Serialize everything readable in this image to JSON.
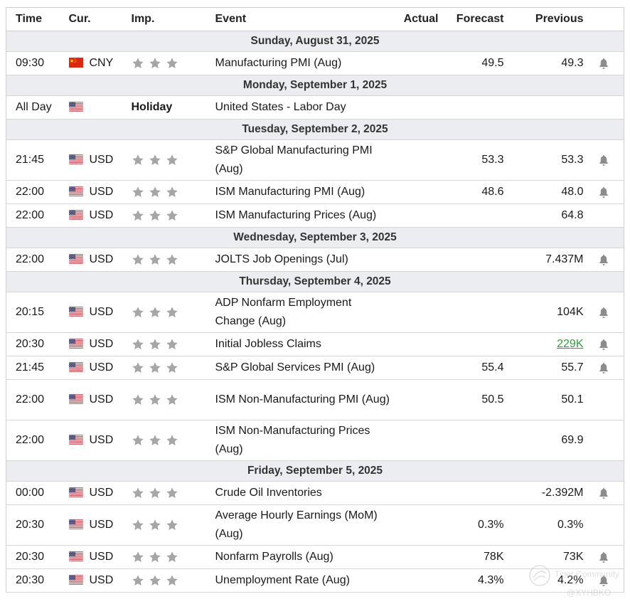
{
  "headers": {
    "time": "Time",
    "cur": "Cur.",
    "imp": "Imp.",
    "event": "Event",
    "actual": "Actual",
    "forecast": "Forecast",
    "previous": "Previous"
  },
  "days": [
    {
      "date": "Sunday, August 31, 2025",
      "events": [
        {
          "time": "09:30",
          "flag": "cn-flag-icon",
          "cur": "CNY",
          "stars": 3,
          "event": "Manufacturing PMI (Aug)",
          "actual": "",
          "forecast": "49.5",
          "previous": "49.3",
          "alert": true
        }
      ]
    },
    {
      "date": "Monday, September 1, 2025",
      "events": [
        {
          "time": "All Day",
          "flag": "us-flag-icon",
          "cur": "",
          "holiday": "Holiday",
          "event": "United States - Labor Day",
          "actual": "",
          "forecast": "",
          "previous": "",
          "alert": false
        }
      ]
    },
    {
      "date": "Tuesday, September 2, 2025",
      "events": [
        {
          "time": "21:45",
          "flag": "us-flag-icon",
          "cur": "USD",
          "stars": 3,
          "event": "S&P Global Manufacturing PMI (Aug)",
          "actual": "",
          "forecast": "53.3",
          "previous": "53.3",
          "alert": true,
          "tall": true
        },
        {
          "time": "22:00",
          "flag": "us-flag-icon",
          "cur": "USD",
          "stars": 3,
          "event": "ISM Manufacturing PMI (Aug)",
          "actual": "",
          "forecast": "48.6",
          "previous": "48.0",
          "alert": true
        },
        {
          "time": "22:00",
          "flag": "us-flag-icon",
          "cur": "USD",
          "stars": 3,
          "event": "ISM Manufacturing Prices (Aug)",
          "actual": "",
          "forecast": "",
          "previous": "64.8",
          "alert": false
        }
      ]
    },
    {
      "date": "Wednesday, September 3, 2025",
      "events": [
        {
          "time": "22:00",
          "flag": "us-flag-icon",
          "cur": "USD",
          "stars": 3,
          "event": "JOLTS Job Openings (Jul)",
          "actual": "",
          "forecast": "",
          "previous": "7.437M",
          "alert": true
        }
      ]
    },
    {
      "date": "Thursday, September 4, 2025",
      "events": [
        {
          "time": "20:15",
          "flag": "us-flag-icon",
          "cur": "USD",
          "stars": 3,
          "event": "ADP Nonfarm Employment Change (Aug)",
          "actual": "",
          "forecast": "",
          "previous": "104K",
          "alert": true,
          "tall": true
        },
        {
          "time": "20:30",
          "flag": "us-flag-icon",
          "cur": "USD",
          "stars": 3,
          "event": "Initial Jobless Claims",
          "actual": "",
          "forecast": "",
          "previous": "229K",
          "previous_color": "#2aa332",
          "alert": true
        },
        {
          "time": "21:45",
          "flag": "us-flag-icon",
          "cur": "USD",
          "stars": 3,
          "event": "S&P Global Services PMI (Aug)",
          "actual": "",
          "forecast": "55.4",
          "previous": "55.7",
          "alert": true
        },
        {
          "time": "22:00",
          "flag": "us-flag-icon",
          "cur": "USD",
          "stars": 3,
          "event": "ISM Non-Manufacturing PMI (Aug)",
          "actual": "",
          "forecast": "50.5",
          "previous": "50.1",
          "alert": false,
          "tall": true
        },
        {
          "time": "22:00",
          "flag": "us-flag-icon",
          "cur": "USD",
          "stars": 3,
          "event": "ISM Non-Manufacturing Prices (Aug)",
          "actual": "",
          "forecast": "",
          "previous": "69.9",
          "alert": false,
          "tall": true
        }
      ]
    },
    {
      "date": "Friday, September 5, 2025",
      "events": [
        {
          "time": "00:00",
          "flag": "us-flag-icon",
          "cur": "USD",
          "stars": 3,
          "event": "Crude Oil Inventories",
          "actual": "",
          "forecast": "",
          "previous": "-2.392M",
          "alert": true
        },
        {
          "time": "20:30",
          "flag": "us-flag-icon",
          "cur": "USD",
          "stars": 3,
          "event": "Average Hourly Earnings (MoM) (Aug)",
          "actual": "",
          "forecast": "0.3%",
          "previous": "0.3%",
          "alert": false,
          "tall": true
        },
        {
          "time": "20:30",
          "flag": "us-flag-icon",
          "cur": "USD",
          "stars": 3,
          "event": "Nonfarm Payrolls (Aug)",
          "actual": "",
          "forecast": "78K",
          "previous": "73K",
          "alert": true
        },
        {
          "time": "20:30",
          "flag": "us-flag-icon",
          "cur": "USD",
          "stars": 3,
          "event": "Unemployment Rate (Aug)",
          "actual": "",
          "forecast": "4.3%",
          "previous": "4.2%",
          "alert": true
        }
      ]
    }
  ],
  "watermark": {
    "text": "Tiger Community",
    "user": "@XYHBKO"
  },
  "colors": {
    "date_row_bg": "#ebedf0",
    "star_color": "#a6a6a6",
    "bell_color": "#8c8c8c",
    "positive": "#2aa332"
  }
}
